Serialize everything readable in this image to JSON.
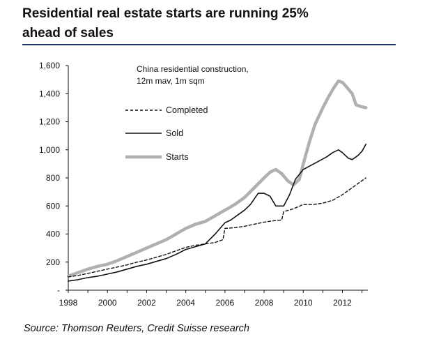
{
  "header": {
    "title_line1": "Residential real estate starts are running 25%",
    "title_line2": "ahead of sales"
  },
  "source": "Source: Thomson Reuters, Credit Suisse research",
  "chart_data": {
    "type": "line",
    "annotation_line1": "China residential construction,",
    "annotation_line2": "12m mav, 1m sqm",
    "xlim": [
      1998,
      2013.3
    ],
    "ylim": [
      0,
      1600
    ],
    "x_ticks": [
      "1998",
      "2000",
      "2002",
      "2004",
      "2006",
      "2008",
      "2010",
      "2012"
    ],
    "y_ticks": [
      "-",
      "200",
      "400",
      "600",
      "800",
      "1,000",
      "1,200",
      "1,400",
      "1,600"
    ],
    "grid": false,
    "legend_position": "upper-left",
    "series": [
      {
        "name": "Completed",
        "style": "dashed",
        "color": "#111111",
        "x": [
          1998,
          1998.5,
          1999,
          1999.5,
          2000,
          2000.5,
          2001,
          2001.5,
          2002,
          2002.5,
          2003,
          2003.5,
          2004,
          2004.5,
          2005,
          2005.5,
          2005.9,
          2006,
          2006.5,
          2007,
          2007.5,
          2008,
          2008.5,
          2008.9,
          2009,
          2009.5,
          2010,
          2010.5,
          2011,
          2011.5,
          2012,
          2012.5,
          2013,
          2013.2
        ],
        "y": [
          95,
          105,
          120,
          135,
          150,
          165,
          180,
          200,
          215,
          235,
          255,
          280,
          305,
          320,
          330,
          340,
          360,
          440,
          445,
          455,
          470,
          485,
          495,
          500,
          560,
          580,
          610,
          610,
          620,
          640,
          680,
          730,
          780,
          800
        ]
      },
      {
        "name": "Sold",
        "style": "solid",
        "color": "#111111",
        "x": [
          1998,
          1998.5,
          1999,
          1999.5,
          2000,
          2000.5,
          2001,
          2001.5,
          2002,
          2002.5,
          2003,
          2003.5,
          2004,
          2004.5,
          2005,
          2005.5,
          2006,
          2006.3,
          2006.7,
          2007,
          2007.3,
          2007.7,
          2008,
          2008.3,
          2008.6,
          2009,
          2009.3,
          2009.6,
          2010,
          2010.4,
          2010.8,
          2011.2,
          2011.5,
          2011.8,
          2012,
          2012.3,
          2012.5,
          2012.8,
          2013,
          2013.2
        ],
        "y": [
          65,
          75,
          90,
          100,
          115,
          130,
          150,
          170,
          185,
          205,
          225,
          255,
          290,
          310,
          330,
          400,
          480,
          500,
          540,
          570,
          610,
          690,
          690,
          670,
          600,
          600,
          680,
          790,
          860,
          890,
          920,
          950,
          980,
          1000,
          980,
          940,
          930,
          960,
          990,
          1040
        ]
      },
      {
        "name": "Starts",
        "style": "solid",
        "color": "#b0b0b0",
        "x": [
          1998,
          1998.5,
          1999,
          1999.5,
          2000,
          2000.5,
          2001,
          2001.5,
          2002,
          2002.5,
          2003,
          2003.5,
          2004,
          2004.5,
          2005,
          2005.5,
          2006,
          2006.5,
          2007,
          2007.5,
          2008,
          2008.3,
          2008.6,
          2008.9,
          2009.2,
          2009.5,
          2009.8,
          2010,
          2010.3,
          2010.6,
          2011,
          2011.3,
          2011.6,
          2011.8,
          2012,
          2012.2,
          2012.5,
          2012.7,
          2012.9,
          2013.2
        ],
        "y": [
          100,
          125,
          150,
          170,
          185,
          210,
          240,
          270,
          300,
          330,
          360,
          400,
          440,
          470,
          490,
          530,
          570,
          610,
          660,
          730,
          800,
          840,
          860,
          830,
          780,
          750,
          790,
          900,
          1050,
          1180,
          1300,
          1380,
          1450,
          1490,
          1480,
          1450,
          1400,
          1320,
          1310,
          1300
        ]
      }
    ]
  }
}
